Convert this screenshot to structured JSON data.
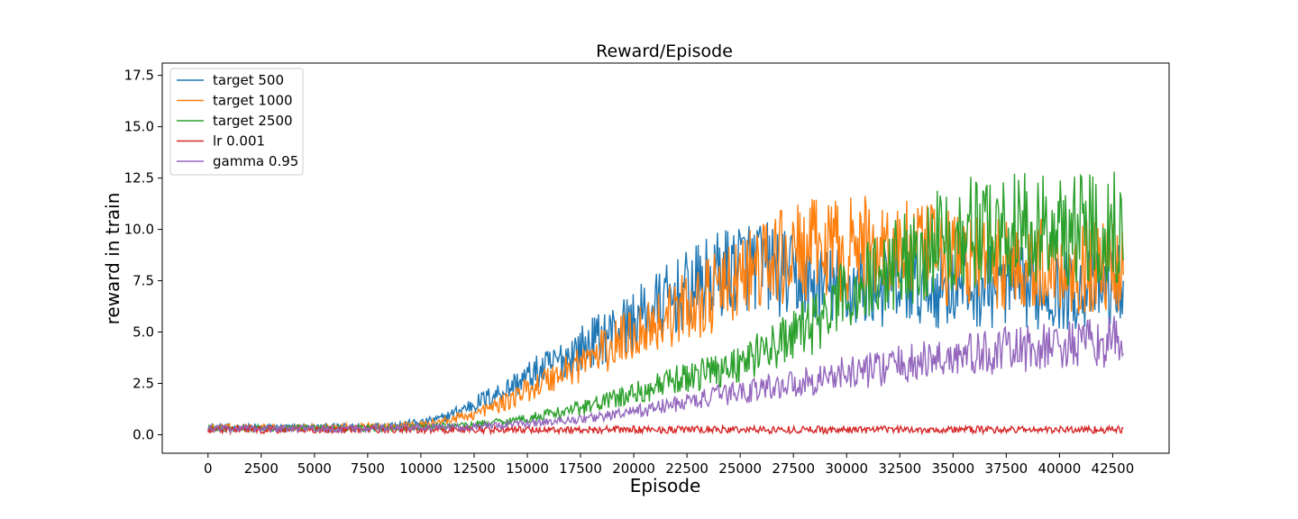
{
  "chart_data": {
    "type": "line",
    "title": "Reward/Episode",
    "xlabel": "Episode",
    "ylabel": "reward in train",
    "xlim": [
      -2150,
      45150
    ],
    "ylim": [
      -0.9,
      18.1
    ],
    "xticks": [
      0,
      2500,
      5000,
      7500,
      10000,
      12500,
      15000,
      17500,
      20000,
      22500,
      25000,
      27500,
      30000,
      32500,
      35000,
      37500,
      40000,
      42500
    ],
    "xtick_labels": [
      "0",
      "2500",
      "5000",
      "7500",
      "10000",
      "12500",
      "15000",
      "17500",
      "20000",
      "22500",
      "25000",
      "27500",
      "30000",
      "32500",
      "35000",
      "37500",
      "40000",
      "42500"
    ],
    "yticks": [
      0.0,
      2.5,
      5.0,
      7.5,
      10.0,
      12.5,
      15.0,
      17.5
    ],
    "ytick_labels": [
      "0.0",
      "2.5",
      "5.0",
      "7.5",
      "10.0",
      "12.5",
      "15.0",
      "17.5"
    ],
    "grid": false,
    "legend_position": "top-left",
    "series": [
      {
        "name": "target 500",
        "color": "#1f77b4",
        "x": [
          0,
          2500,
          5000,
          7500,
          10000,
          11000,
          12500,
          14000,
          15000,
          16000,
          17500,
          19000,
          20000,
          21000,
          22500,
          24000,
          25000,
          26000,
          27500,
          28500,
          30000,
          32500,
          35000,
          37500,
          40000,
          42500,
          43000
        ],
        "y": [
          0.35,
          0.35,
          0.35,
          0.4,
          0.6,
          0.8,
          1.5,
          2.2,
          2.8,
          3.3,
          4.2,
          5.0,
          5.5,
          6.2,
          7.0,
          7.8,
          8.3,
          8.3,
          7.6,
          7.2,
          7.2,
          7.2,
          7.2,
          7.2,
          7.0,
          7.2,
          7.5
        ]
      },
      {
        "name": "target 1000",
        "color": "#ff7f0e",
        "x": [
          0,
          2500,
          5000,
          7500,
          10000,
          11000,
          12500,
          14000,
          15000,
          16000,
          17500,
          19000,
          20000,
          21000,
          22500,
          24000,
          25000,
          26000,
          27500,
          28500,
          30000,
          31500,
          32500,
          35000,
          37500,
          40000,
          42500,
          43000
        ],
        "y": [
          0.35,
          0.35,
          0.35,
          0.4,
          0.5,
          0.65,
          1.0,
          1.6,
          2.2,
          2.7,
          3.5,
          4.3,
          5.0,
          5.5,
          6.2,
          7.0,
          7.6,
          8.2,
          8.8,
          9.0,
          9.0,
          9.2,
          9.0,
          8.6,
          8.4,
          8.2,
          8.2,
          8.4
        ]
      },
      {
        "name": "target 2500",
        "color": "#2ca02c",
        "x": [
          0,
          2500,
          5000,
          7500,
          10000,
          12500,
          15000,
          17500,
          20000,
          22500,
          25000,
          27500,
          29000,
          30000,
          31500,
          32500,
          35000,
          37500,
          40000,
          42500,
          43000
        ],
        "y": [
          0.3,
          0.3,
          0.3,
          0.3,
          0.35,
          0.5,
          0.8,
          1.3,
          2.0,
          2.8,
          3.5,
          4.8,
          5.8,
          6.8,
          7.8,
          8.5,
          9.8,
          10.0,
          10.0,
          10.2,
          10.3
        ]
      },
      {
        "name": "lr 0.001",
        "color": "#d62728",
        "x": [
          0,
          2500,
          5000,
          7500,
          10000,
          12500,
          15000,
          17500,
          20000,
          22500,
          25000,
          27500,
          30000,
          32500,
          35000,
          37500,
          40000,
          42500,
          43000
        ],
        "y": [
          0.25,
          0.25,
          0.25,
          0.25,
          0.25,
          0.25,
          0.25,
          0.25,
          0.25,
          0.25,
          0.25,
          0.25,
          0.25,
          0.25,
          0.25,
          0.25,
          0.25,
          0.25,
          0.25
        ]
      },
      {
        "name": "gamma 0.95",
        "color": "#9467bd",
        "x": [
          0,
          2500,
          5000,
          7500,
          10000,
          12500,
          15000,
          17500,
          20000,
          22500,
          25000,
          27500,
          30000,
          32500,
          35000,
          37500,
          40000,
          42500,
          43000
        ],
        "y": [
          0.3,
          0.3,
          0.3,
          0.3,
          0.35,
          0.4,
          0.55,
          0.75,
          1.1,
          1.6,
          2.1,
          2.5,
          3.0,
          3.4,
          3.8,
          4.1,
          4.3,
          4.5,
          4.7
        ]
      }
    ]
  }
}
